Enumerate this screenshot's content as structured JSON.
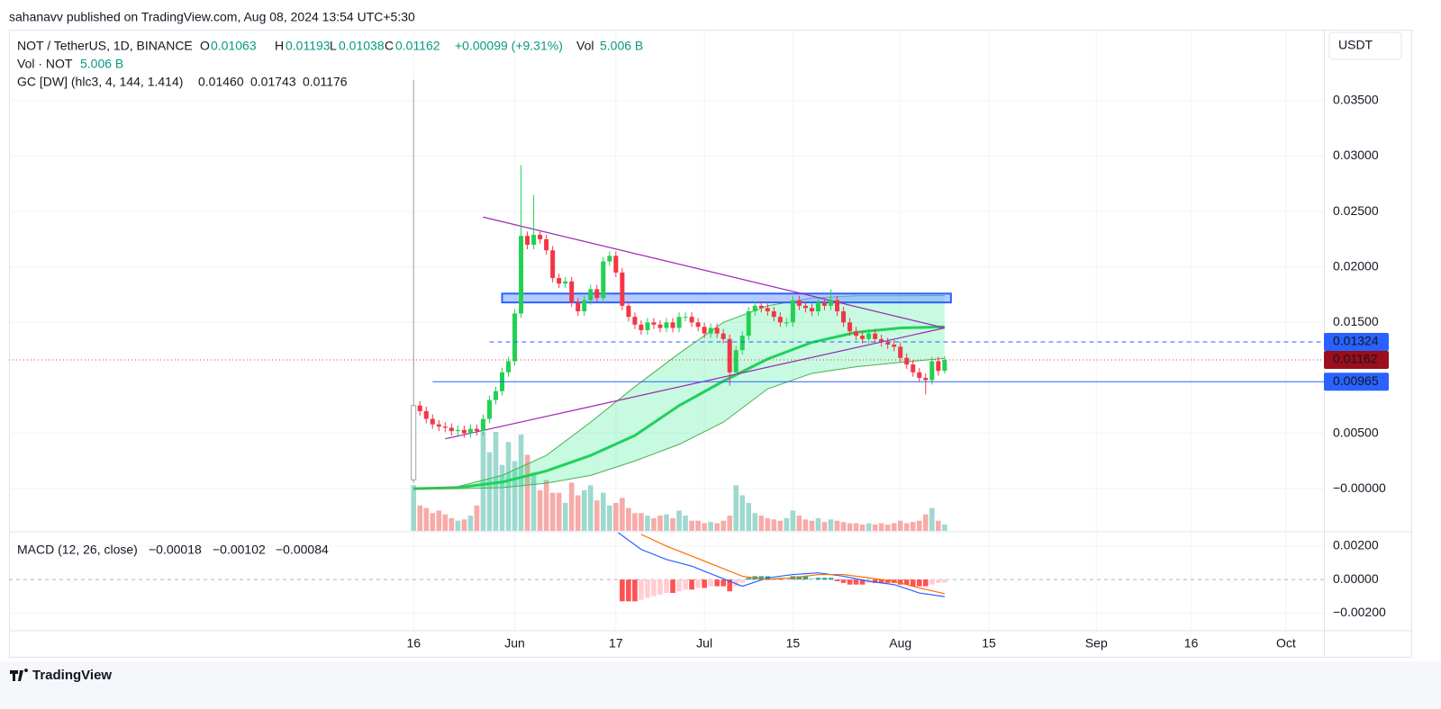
{
  "header": {
    "published": "sahanavv published on TradingView.com, Aug 08, 2024 13:54 UTC+5:30"
  },
  "footer": {
    "brand": "TradingView"
  },
  "chart_data": {
    "type": "candlestick",
    "symbol": "NOT / TetherUS, 1D, BINANCE",
    "currency": "USDT",
    "legend_labels": {
      "open": "O",
      "high": "H",
      "low": "L",
      "close": "C",
      "volume": "Vol"
    },
    "change": "+0.00099 (+9.31%)",
    "up_color": "#22d151",
    "down_color": "#f23645",
    "x": [
      "2024-05-16",
      "2024-05-17",
      "2024-05-18",
      "2024-05-19",
      "2024-05-20",
      "2024-05-21",
      "2024-05-22",
      "2024-05-23",
      "2024-05-24",
      "2024-05-25",
      "2024-05-26",
      "2024-05-27",
      "2024-05-28",
      "2024-05-29",
      "2024-05-30",
      "2024-05-31",
      "2024-06-01",
      "2024-06-02",
      "2024-06-03",
      "2024-06-04",
      "2024-06-05",
      "2024-06-06",
      "2024-06-07",
      "2024-06-08",
      "2024-06-09",
      "2024-06-10",
      "2024-06-11",
      "2024-06-12",
      "2024-06-13",
      "2024-06-14",
      "2024-06-15",
      "2024-06-16",
      "2024-06-17",
      "2024-06-18",
      "2024-06-19",
      "2024-06-20",
      "2024-06-21",
      "2024-06-22",
      "2024-06-23",
      "2024-06-24",
      "2024-06-25",
      "2024-06-26",
      "2024-06-27",
      "2024-06-28",
      "2024-06-29",
      "2024-06-30",
      "2024-07-01",
      "2024-07-02",
      "2024-07-03",
      "2024-07-04",
      "2024-07-05",
      "2024-07-06",
      "2024-07-07",
      "2024-07-08",
      "2024-07-09",
      "2024-07-10",
      "2024-07-11",
      "2024-07-12",
      "2024-07-13",
      "2024-07-14",
      "2024-07-15",
      "2024-07-16",
      "2024-07-17",
      "2024-07-18",
      "2024-07-19",
      "2024-07-20",
      "2024-07-21",
      "2024-07-22",
      "2024-07-23",
      "2024-07-24",
      "2024-07-25",
      "2024-07-26",
      "2024-07-27",
      "2024-07-28",
      "2024-07-29",
      "2024-07-30",
      "2024-07-31",
      "2024-08-01",
      "2024-08-02",
      "2024-08-03",
      "2024-08-04",
      "2024-08-05",
      "2024-08-06",
      "2024-08-07",
      "2024-08-08"
    ],
    "open": [
      0.0008,
      0.0075,
      0.007,
      0.0063,
      0.0058,
      0.0056,
      0.0055,
      0.0052,
      0.0053,
      0.005,
      0.0054,
      0.0052,
      0.0063,
      0.008,
      0.0088,
      0.0105,
      0.0115,
      0.0158,
      0.0228,
      0.022,
      0.0229,
      0.0225,
      0.0215,
      0.019,
      0.0185,
      0.0187,
      0.0168,
      0.016,
      0.017,
      0.018,
      0.0172,
      0.0205,
      0.021,
      0.0195,
      0.0165,
      0.0155,
      0.0148,
      0.0143,
      0.015,
      0.0148,
      0.0145,
      0.015,
      0.0145,
      0.0155,
      0.0155,
      0.015,
      0.0146,
      0.014,
      0.0145,
      0.014,
      0.0135,
      0.0105,
      0.0125,
      0.0138,
      0.016,
      0.0165,
      0.0163,
      0.016,
      0.0155,
      0.015,
      0.015,
      0.017,
      0.0165,
      0.0163,
      0.016,
      0.0168,
      0.0165,
      0.017,
      0.016,
      0.015,
      0.0142,
      0.0138,
      0.0135,
      0.014,
      0.0135,
      0.0132,
      0.013,
      0.0128,
      0.0118,
      0.0112,
      0.0105,
      0.01,
      0.0098,
      0.0115,
      0.01063
    ],
    "high": [
      0.0369,
      0.0079,
      0.0074,
      0.0067,
      0.0062,
      0.006,
      0.0059,
      0.0057,
      0.0057,
      0.0058,
      0.0058,
      0.0067,
      0.0084,
      0.0092,
      0.0109,
      0.0119,
      0.0162,
      0.0292,
      0.0232,
      0.0265,
      0.0233,
      0.0229,
      0.0219,
      0.0194,
      0.0191,
      0.0191,
      0.0172,
      0.0174,
      0.0184,
      0.0184,
      0.0209,
      0.0214,
      0.0214,
      0.0199,
      0.0169,
      0.0159,
      0.0152,
      0.0154,
      0.0154,
      0.0152,
      0.0154,
      0.0154,
      0.0159,
      0.0159,
      0.0159,
      0.0154,
      0.015,
      0.0149,
      0.0149,
      0.0144,
      0.0139,
      0.0129,
      0.0142,
      0.0164,
      0.0169,
      0.0169,
      0.0167,
      0.0164,
      0.0159,
      0.0154,
      0.0174,
      0.0174,
      0.0169,
      0.0167,
      0.0172,
      0.0172,
      0.018,
      0.0174,
      0.0164,
      0.0154,
      0.0146,
      0.0142,
      0.0144,
      0.0144,
      0.0139,
      0.0136,
      0.0134,
      0.0132,
      0.0122,
      0.0116,
      0.0109,
      0.0104,
      0.0119,
      0.0119,
      0.01193
    ],
    "low": [
      0.0005,
      0.0066,
      0.0059,
      0.0054,
      0.0052,
      0.0051,
      0.0048,
      0.0048,
      0.0046,
      0.0046,
      0.0048,
      0.0048,
      0.0059,
      0.0076,
      0.0084,
      0.0101,
      0.0111,
      0.0154,
      0.0216,
      0.0216,
      0.0221,
      0.0211,
      0.0186,
      0.0181,
      0.0181,
      0.0164,
      0.0156,
      0.0156,
      0.0166,
      0.0168,
      0.0168,
      0.0201,
      0.0191,
      0.0161,
      0.0151,
      0.0144,
      0.0139,
      0.0139,
      0.0144,
      0.0141,
      0.0141,
      0.0141,
      0.0141,
      0.0151,
      0.0146,
      0.0142,
      0.0136,
      0.0136,
      0.0136,
      0.0131,
      0.0093,
      0.0101,
      0.0121,
      0.0134,
      0.0156,
      0.0159,
      0.0156,
      0.0151,
      0.0146,
      0.0146,
      0.0146,
      0.0161,
      0.0159,
      0.0156,
      0.0156,
      0.0161,
      0.0161,
      0.0156,
      0.0146,
      0.0138,
      0.0134,
      0.0131,
      0.0131,
      0.0131,
      0.0128,
      0.0126,
      0.0124,
      0.0114,
      0.0108,
      0.0101,
      0.0096,
      0.0085,
      0.0094,
      0.0102,
      0.01038
    ],
    "close": [
      0.0075,
      0.007,
      0.0063,
      0.0058,
      0.0056,
      0.0055,
      0.0052,
      0.0053,
      0.005,
      0.0054,
      0.0052,
      0.0063,
      0.008,
      0.0088,
      0.0105,
      0.0115,
      0.0158,
      0.0228,
      0.022,
      0.0229,
      0.0225,
      0.0215,
      0.019,
      0.0185,
      0.0187,
      0.0168,
      0.016,
      0.017,
      0.018,
      0.0172,
      0.0205,
      0.021,
      0.0195,
      0.0165,
      0.0155,
      0.0148,
      0.0143,
      0.015,
      0.0148,
      0.0145,
      0.015,
      0.0145,
      0.0155,
      0.0155,
      0.015,
      0.0146,
      0.014,
      0.0145,
      0.014,
      0.0135,
      0.0105,
      0.0125,
      0.0138,
      0.016,
      0.0165,
      0.0163,
      0.016,
      0.0155,
      0.015,
      0.015,
      0.017,
      0.0165,
      0.0163,
      0.016,
      0.0168,
      0.0165,
      0.017,
      0.016,
      0.015,
      0.0142,
      0.0138,
      0.0135,
      0.014,
      0.0135,
      0.0132,
      0.013,
      0.0128,
      0.0118,
      0.0112,
      0.0105,
      0.01,
      0.0098,
      0.0115,
      0.01063,
      0.01162
    ],
    "volume": {
      "name": "Vol · NOT",
      "value_label": "5.006 B",
      "up_color": "#9ed9cf",
      "down_color": "#f7aba8",
      "values": [
        36,
        20,
        18,
        14,
        16,
        13,
        10,
        8,
        9,
        12,
        20,
        78,
        62,
        78,
        52,
        70,
        55,
        76,
        60,
        46,
        32,
        40,
        30,
        30,
        22,
        38,
        28,
        32,
        36,
        24,
        30,
        20,
        22,
        26,
        18,
        14,
        14,
        12,
        10,
        12,
        13,
        10,
        16,
        12,
        8,
        8,
        6,
        7,
        6,
        8,
        12,
        36,
        28,
        22,
        14,
        12,
        10,
        9,
        8,
        10,
        16,
        12,
        9,
        8,
        10,
        7,
        9,
        8,
        7,
        6,
        6,
        5,
        6,
        5,
        6,
        5,
        6,
        8,
        6,
        7,
        8,
        13,
        18,
        8,
        5.006
      ]
    },
    "xlim": [
      "2024-03-13",
      "2024-10-07"
    ],
    "xticks": [
      {
        "value": "2024-05-16",
        "label": "16"
      },
      {
        "value": "2024-06-01",
        "label": "Jun"
      },
      {
        "value": "2024-06-17",
        "label": "17"
      },
      {
        "value": "2024-07-01",
        "label": "Jul"
      },
      {
        "value": "2024-07-15",
        "label": "15"
      },
      {
        "value": "2024-08-01",
        "label": "Aug"
      },
      {
        "value": "2024-08-15",
        "label": "15"
      },
      {
        "value": "2024-09-01",
        "label": "Sep"
      },
      {
        "value": "2024-09-16",
        "label": "16"
      },
      {
        "value": "2024-10-01",
        "label": "Oct"
      }
    ],
    "ylim": [
      -0.0038,
      0.0414
    ],
    "yticks": [
      {
        "value": 0,
        "label": "−0.00000"
      },
      {
        "value": 0.005,
        "label": "0.00500"
      },
      {
        "value": 0.015,
        "label": "0.01500"
      },
      {
        "value": 0.02,
        "label": "0.02000"
      },
      {
        "value": 0.025,
        "label": "0.02500"
      },
      {
        "value": 0.03,
        "label": "0.03000"
      },
      {
        "value": 0.035,
        "label": "0.03500"
      }
    ],
    "grid": true,
    "price_line_color": "#e53935",
    "price_badge_color": "#9b0e1b",
    "gaussian_channel": {
      "name": "GC [DW] (hlc3, 4, 144, 1.414)",
      "fill": "rgba(0,230,118,0.22)",
      "label_color": "#f0145a",
      "x": [
        "2024-05-16",
        "2024-05-23",
        "2024-05-30",
        "2024-06-06",
        "2024-06-13",
        "2024-06-20",
        "2024-06-27",
        "2024-07-04",
        "2024-07-11",
        "2024-07-18",
        "2024-07-25",
        "2024-08-01",
        "2024-08-08"
      ],
      "series": [
        {
          "color": "#1fd15a",
          "width": 3,
          "value_label": "0.01460",
          "values": [
            0,
            0.0001,
            0.0006,
            0.0016,
            0.003,
            0.0048,
            0.0075,
            0.0097,
            0.0117,
            0.0132,
            0.0141,
            0.0145,
            0.0146
          ]
        },
        {
          "color": "#4caf50",
          "width": 1,
          "value_label": "0.01743",
          "values": [
            0,
            0.0002,
            0.0012,
            0.003,
            0.006,
            0.0092,
            0.0122,
            0.015,
            0.0165,
            0.0172,
            0.0174,
            0.0174,
            0.01743
          ]
        },
        {
          "color": "#4caf50",
          "width": 1,
          "value_label": "0.01176",
          "values": [
            0,
            0,
            0.0001,
            0.0005,
            0.0012,
            0.0025,
            0.004,
            0.006,
            0.009,
            0.0104,
            0.011,
            0.0114,
            0.01176
          ]
        }
      ]
    },
    "trendlines": [
      {
        "color": "#9c27b0",
        "x": [
          "2024-05-27",
          "2024-08-08"
        ],
        "y": [
          0.0245,
          0.0145
        ]
      },
      {
        "color": "#9c27b0",
        "x": [
          "2024-05-21",
          "2024-08-08"
        ],
        "y": [
          0.0045,
          0.0145
        ]
      }
    ],
    "zone": {
      "color": "#2962ff",
      "fill": "rgba(120,160,255,0.55)",
      "x": [
        "2024-05-30",
        "2024-08-09"
      ],
      "y": [
        0.0168,
        0.0176
      ]
    },
    "levels": [
      {
        "value": 0.01324,
        "start": "2024-05-28",
        "style": "dashed",
        "color": "#2962ff"
      },
      {
        "value": 0.00965,
        "start": "2024-05-19",
        "style": "solid",
        "color": "#2962ff"
      }
    ],
    "macd": {
      "name": "MACD (12, 26, close)",
      "ylim": [
        -0.003,
        0.0028
      ],
      "yticks": [
        {
          "value": -0.002,
          "label": "−0.00200"
        },
        {
          "value": 0,
          "label": "0.00000"
        },
        {
          "value": 0.002,
          "label": "0.00200"
        }
      ],
      "histogram": {
        "value_label": "−0.00018",
        "color": "#ffcdd2",
        "up_color": "#26a69a",
        "down_color": "#ff5252",
        "light_up_color": "#b2dfdb",
        "values": [
          null,
          null,
          null,
          null,
          null,
          null,
          null,
          null,
          null,
          null,
          null,
          null,
          null,
          null,
          null,
          null,
          null,
          null,
          null,
          null,
          null,
          null,
          null,
          null,
          null,
          null,
          null,
          null,
          null,
          null,
          null,
          null,
          null,
          -0.0013,
          -0.0013,
          -0.0013,
          -0.0012,
          -0.0011,
          -0.001,
          -0.0009,
          -0.0008,
          -0.0008,
          -0.0007,
          -0.0006,
          -0.0006,
          -0.0005,
          -0.0005,
          -0.0004,
          -0.0004,
          -0.0004,
          -0.0007,
          -0.0004,
          -0.0002,
          0.0001,
          0.0002,
          0.0002,
          0.0002,
          0.0001,
          0.0001,
          0,
          0.0002,
          0.0002,
          0.0002,
          0.0001,
          0.0001,
          0.0001,
          0.0001,
          -0.0001,
          -0.0002,
          -0.0003,
          -0.0003,
          -0.0003,
          -0.0002,
          -0.0002,
          -0.0002,
          -0.0002,
          -0.0002,
          -0.0003,
          -0.0003,
          -0.0004,
          -0.0004,
          -0.0004,
          -0.0003,
          -0.0002,
          -0.00018
        ]
      },
      "x": [
        "2024-06-17",
        "2024-06-21",
        "2024-06-25",
        "2024-06-29",
        "2024-07-03",
        "2024-07-07",
        "2024-07-11",
        "2024-07-15",
        "2024-07-19",
        "2024-07-23",
        "2024-07-27",
        "2024-07-31",
        "2024-08-04",
        "2024-08-08"
      ],
      "series": [
        {
          "color": "#2962ff",
          "value_label": "−0.00102",
          "values": [
            0.0029,
            0.0018,
            0.0012,
            0.0008,
            0.0002,
            -0.0004,
            0.0001,
            0.0003,
            0.0004,
            0.0002,
            -0.0001,
            -0.0003,
            -0.0008,
            -0.00102
          ]
        },
        {
          "color": "#ff6d00",
          "value_label": "−0.00084",
          "values": [
            null,
            0.0027,
            0.002,
            0.0014,
            0.0008,
            0.0002,
            0,
            0.0001,
            0.0003,
            0.0003,
            0.0001,
            -0.0001,
            -0.0005,
            -0.00084
          ]
        }
      ]
    }
  }
}
